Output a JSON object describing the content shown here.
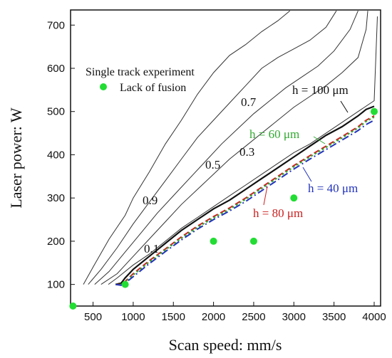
{
  "chart_data": {
    "type": "line",
    "xlabel": "Scan speed: mm/s",
    "ylabel": "Laser power: W",
    "xlim": [
      220,
      4080
    ],
    "ylim": [
      50,
      735
    ],
    "xticks": [
      500,
      1000,
      1500,
      2000,
      2500,
      3000,
      3500,
      4000
    ],
    "yticks": [
      100,
      200,
      300,
      400,
      500,
      600,
      700
    ],
    "xtick_labels": [
      "500",
      "1000",
      "1500",
      "2000",
      "2500",
      "3000",
      "3500",
      "4000"
    ],
    "ytick_labels": [
      "100",
      "200",
      "300",
      "400",
      "500",
      "600",
      "700"
    ],
    "grid": false,
    "legend": {
      "placement": "top-left",
      "title": "Single track experiment",
      "entries": [
        {
          "label": "Lack of fusion",
          "color": "#22dd33",
          "marker": "circle"
        }
      ]
    },
    "contours": [
      {
        "label": "0.9",
        "color": "#333333",
        "x": [
          380,
          500,
          700,
          900,
          1000,
          1200,
          1400,
          1600,
          1800,
          2000,
          2200,
          2400,
          2600,
          2800,
          2950
        ],
        "y": [
          100,
          140,
          205,
          260,
          300,
          360,
          425,
          480,
          540,
          590,
          630,
          655,
          685,
          710,
          733
        ]
      },
      {
        "label": "0.7",
        "color": "#333333",
        "x": [
          440,
          600,
          800,
          1000,
          1200,
          1400,
          1600,
          1800,
          2000,
          2200,
          2400,
          2600,
          2800,
          3000,
          3200,
          3400,
          3530
        ],
        "y": [
          100,
          135,
          185,
          240,
          290,
          340,
          390,
          440,
          480,
          520,
          560,
          600,
          625,
          645,
          665,
          695,
          733
        ]
      },
      {
        "label": "0.5",
        "color": "#333333",
        "x": [
          520,
          700,
          900,
          1100,
          1300,
          1500,
          1700,
          1900,
          2100,
          2300,
          2500,
          2700,
          2900,
          3100,
          3300,
          3500,
          3700,
          3800
        ],
        "y": [
          100,
          130,
          175,
          220,
          265,
          305,
          345,
          385,
          425,
          460,
          495,
          525,
          555,
          580,
          605,
          640,
          690,
          733
        ]
      },
      {
        "label": "0.3",
        "color": "#333333",
        "x": [
          600,
          800,
          1000,
          1200,
          1400,
          1600,
          1800,
          2000,
          2200,
          2400,
          2600,
          2800,
          3000,
          3200,
          3400,
          3600,
          3800,
          3900,
          3920
        ],
        "y": [
          100,
          125,
          165,
          205,
          245,
          285,
          320,
          355,
          390,
          420,
          450,
          480,
          510,
          535,
          560,
          590,
          625,
          690,
          733
        ]
      },
      {
        "label": "0.1",
        "color": "#333333",
        "x": [
          690,
          800,
          1000,
          1200,
          1400,
          1600,
          1800,
          2000,
          2200,
          2400,
          2600,
          2800,
          3000,
          3200,
          3400,
          3600,
          3800,
          4000,
          4040
        ],
        "y": [
          100,
          115,
          145,
          170,
          200,
          230,
          255,
          280,
          305,
          330,
          355,
          380,
          405,
          425,
          450,
          475,
          500,
          525,
          720
        ]
      }
    ],
    "series": [
      {
        "name": "h = 100 μm",
        "color": "#111111",
        "dash": "solid",
        "width": 2.2,
        "x": [
          780,
          850,
          900,
          1000,
          1200,
          1400,
          1600,
          1800,
          2000,
          2200,
          2400,
          2600,
          2800,
          3000,
          3200,
          3400,
          3600,
          3800,
          3900,
          4000
        ],
        "y": [
          100,
          103,
          115,
          135,
          165,
          195,
          225,
          250,
          275,
          295,
          320,
          345,
          370,
          395,
          420,
          445,
          465,
          490,
          505,
          512
        ]
      },
      {
        "name": "h = 80 μm",
        "color": "#cc2222",
        "dash": "8,4",
        "width": 2.0,
        "x": [
          780,
          850,
          900,
          1000,
          1200,
          1400,
          1600,
          1800,
          2000,
          2200,
          2400,
          2600,
          2800,
          3000,
          3200,
          3400,
          3600,
          3800,
          3900,
          4000
        ],
        "y": [
          100,
          100,
          107,
          125,
          155,
          182,
          210,
          235,
          257,
          277,
          300,
          325,
          350,
          375,
          398,
          420,
          442,
          465,
          480,
          490
        ]
      },
      {
        "name": "h = 60 μm",
        "color": "#33aa33",
        "dash": "3,3",
        "width": 2.0,
        "x": [
          780,
          850,
          900,
          1000,
          1200,
          1400,
          1600,
          1800,
          2000,
          2200,
          2400,
          2600,
          2800,
          3000,
          3200,
          3400,
          3600,
          3800,
          3900,
          4000
        ],
        "y": [
          100,
          100,
          105,
          122,
          152,
          180,
          207,
          232,
          254,
          274,
          297,
          322,
          347,
          372,
          395,
          417,
          439,
          462,
          477,
          487
        ]
      },
      {
        "name": "h = 40 μm",
        "color": "#2233bb",
        "dash": "10,4,2,4",
        "width": 2.0,
        "x": [
          780,
          850,
          900,
          1000,
          1200,
          1400,
          1600,
          1800,
          2000,
          2200,
          2400,
          2600,
          2800,
          3000,
          3200,
          3400,
          3600,
          3800,
          3900,
          4000
        ],
        "y": [
          100,
          98,
          103,
          118,
          148,
          176,
          203,
          228,
          250,
          270,
          292,
          317,
          342,
          367,
          390,
          412,
          434,
          456,
          470,
          480
        ]
      }
    ],
    "experiment_points": {
      "label": "Lack of fusion",
      "color": "#22dd33",
      "x": [
        250,
        900,
        2000,
        2500,
        3000,
        4000
      ],
      "y": [
        50,
        100,
        200,
        200,
        300,
        500
      ]
    },
    "annotations": [
      {
        "text": "h = 100 μm",
        "color": "#111111"
      },
      {
        "text": "h = 60 μm",
        "color": "#33aa33"
      },
      {
        "text": "h = 40 μm",
        "color": "#2233bb"
      },
      {
        "text": "h = 80 μm",
        "color": "#cc2222"
      }
    ]
  }
}
